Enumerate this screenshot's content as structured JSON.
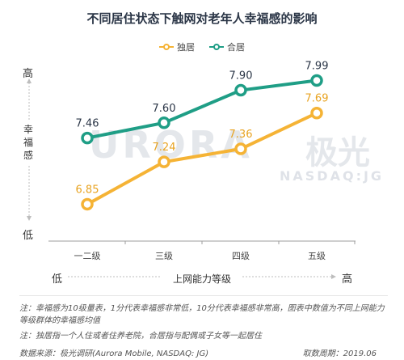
{
  "title": "不同居住状态下触网对老年人幸福感的影响",
  "y_high": "高",
  "y_low": "低",
  "y_label": "幸福感",
  "x_low": "低",
  "x_high": "高",
  "x_label": "上网能力等级",
  "watermark": {
    "main": "URORA",
    "cn": "极光",
    "sub": "NASDAQ:JG"
  },
  "notes": [
    "注：幸福感为10级量表，1分代表幸福感非常低，10分代表幸福感非常高，图表中数值为不同上网能力等级群体的幸福感均值",
    "注：独居指一个人住或者住养老院，合居指与配偶或子女等一起居住"
  ],
  "source": "数据来源：极光调研(Aurora Mobile, NASDAQ: JG)",
  "period": "取数周期：2019.06",
  "colors": {
    "alone": "#f5b335",
    "together": "#1f9e86"
  },
  "chart_data": {
    "type": "line",
    "categories": [
      "一二级",
      "三级",
      "四级",
      "五级"
    ],
    "series": [
      {
        "name": "独居",
        "values": [
          6.85,
          7.24,
          7.36,
          7.69
        ]
      },
      {
        "name": "合居",
        "values": [
          7.46,
          7.6,
          7.9,
          7.99
        ]
      }
    ],
    "title": "不同居住状态下触网对老年人幸福感的影响",
    "xlabel": "上网能力等级",
    "ylabel": "幸福感",
    "ylim": [
      6.6,
      8.15
    ],
    "legend": "top-center",
    "grid": false
  }
}
